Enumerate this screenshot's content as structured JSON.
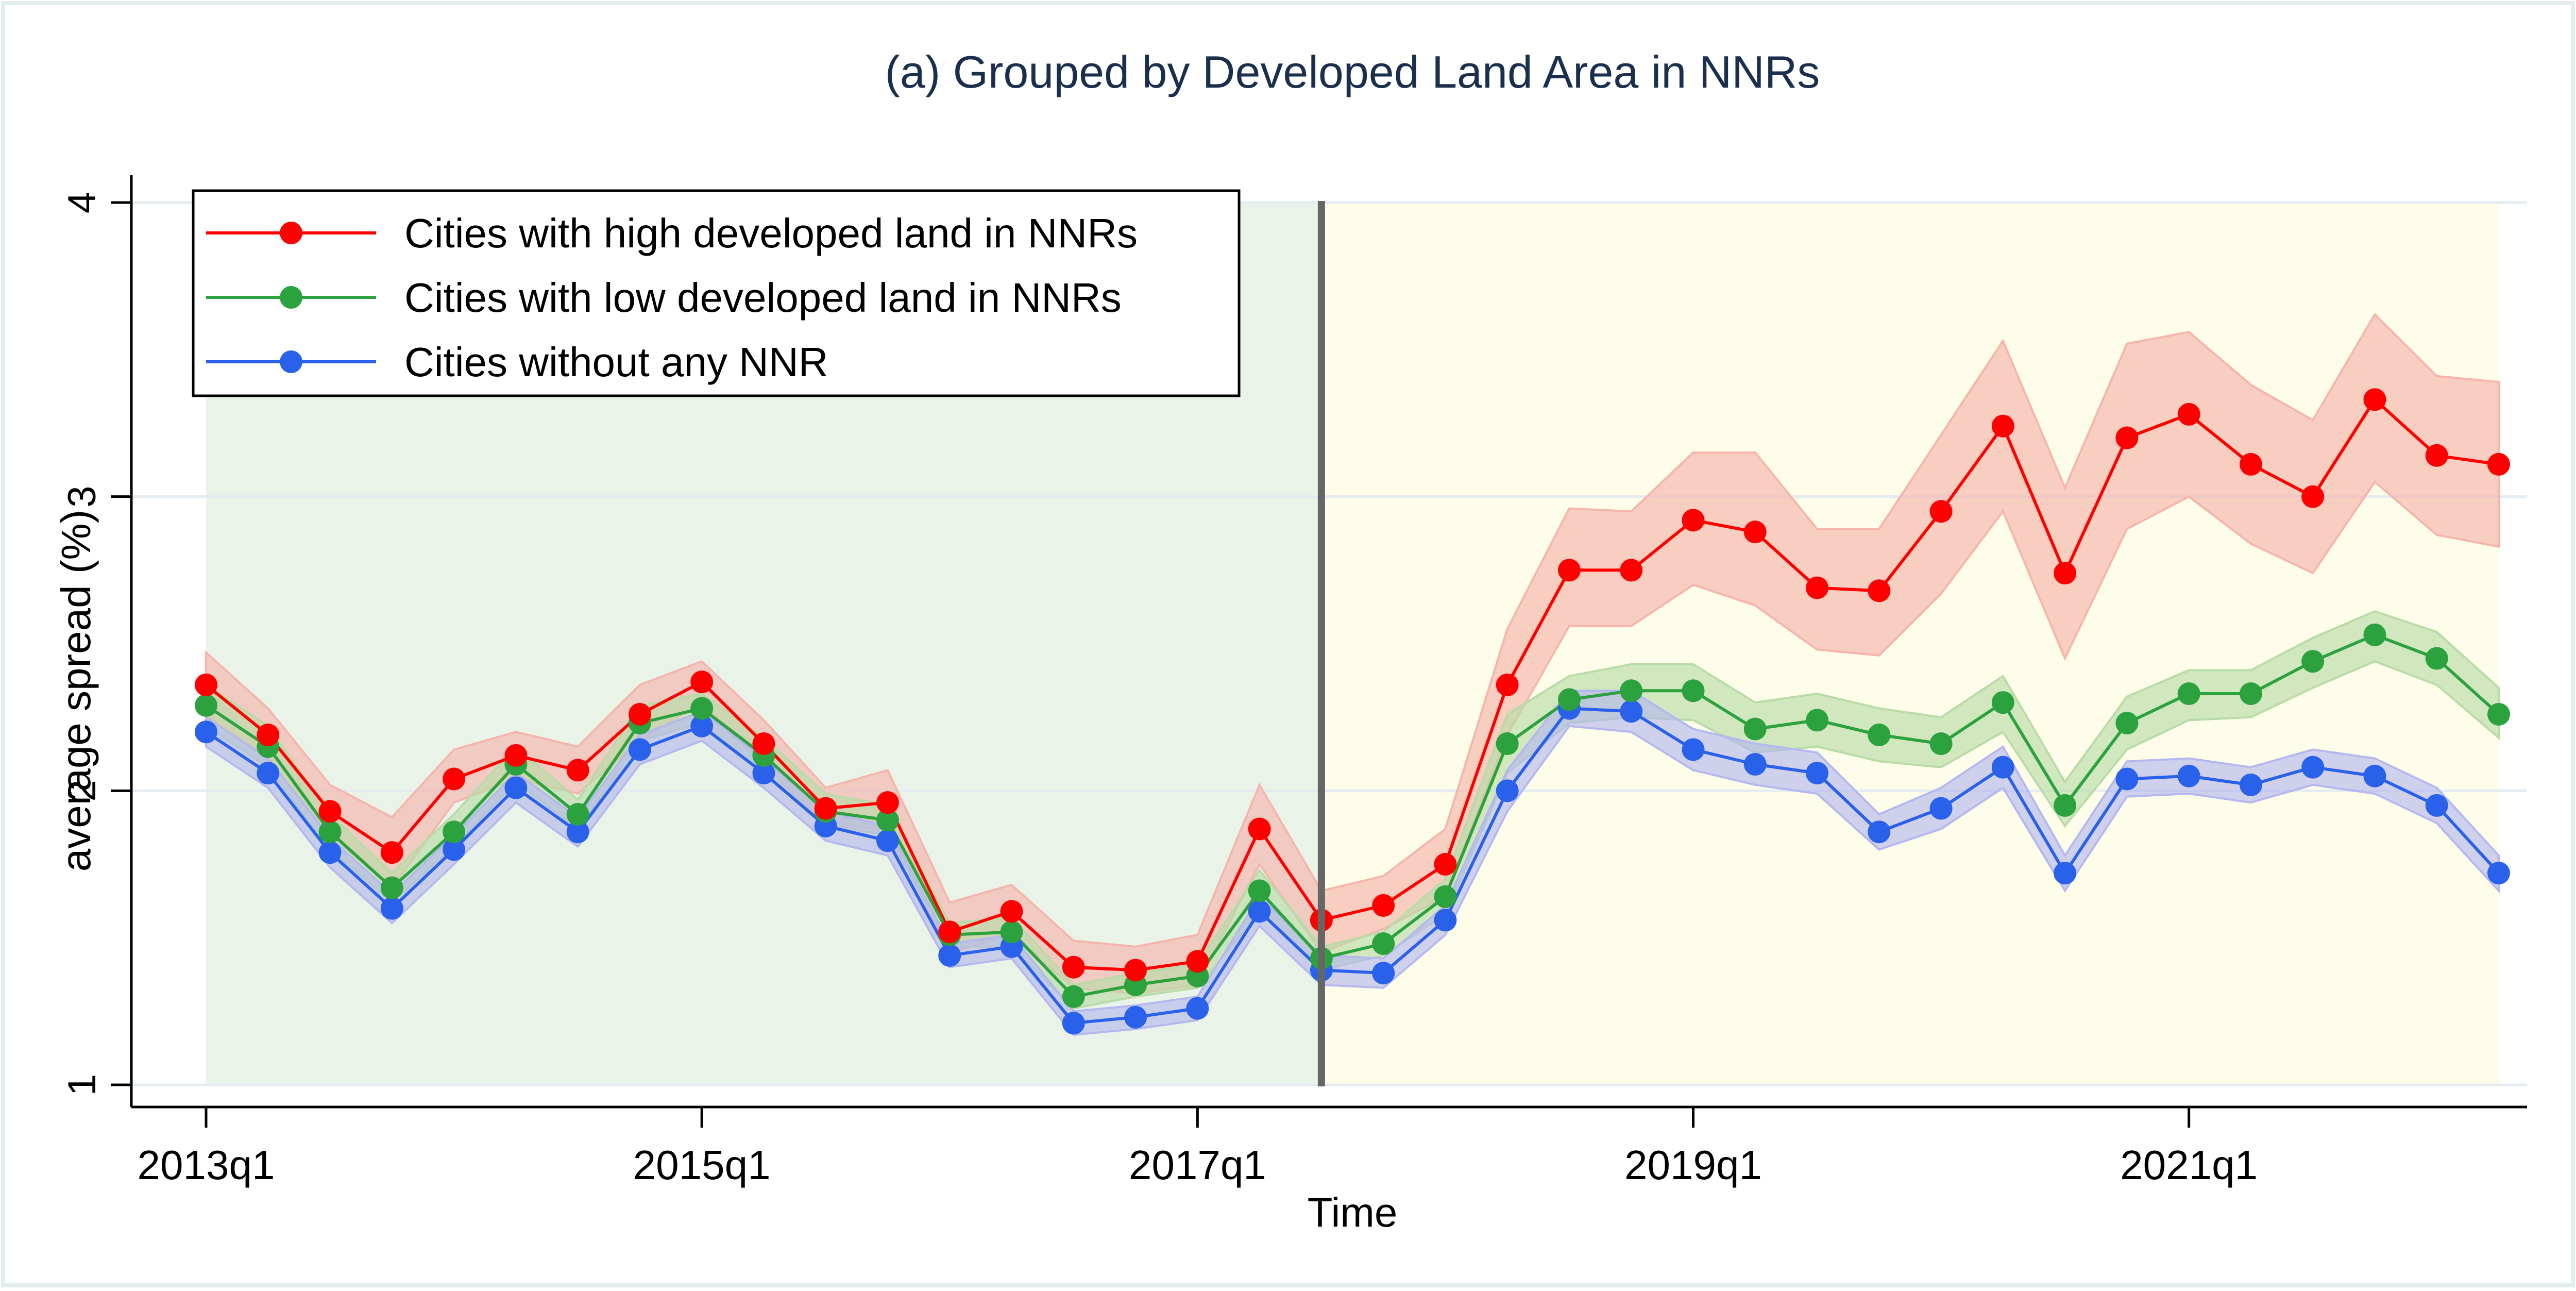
{
  "chart_data": {
    "type": "line",
    "title": "(a) Grouped by Developed Land Area in NNRs",
    "xlabel": "Time",
    "ylabel": "average spread (%)",
    "ylim": [
      1,
      4
    ],
    "yticks": [
      1,
      2,
      3,
      4
    ],
    "x": [
      "2013q1",
      "2013q2",
      "2013q3",
      "2013q4",
      "2014q1",
      "2014q2",
      "2014q3",
      "2014q4",
      "2015q1",
      "2015q2",
      "2015q3",
      "2015q4",
      "2016q1",
      "2016q2",
      "2016q3",
      "2016q4",
      "2017q1",
      "2017q2",
      "2017q3",
      "2017q4",
      "2018q1",
      "2018q2",
      "2018q3",
      "2018q4",
      "2019q1",
      "2019q2",
      "2019q3",
      "2019q4",
      "2020q1",
      "2020q2",
      "2020q3",
      "2020q4",
      "2021q1",
      "2021q2",
      "2021q3",
      "2021q4",
      "2022q1",
      "2022q2"
    ],
    "xticks": [
      "2013q1",
      "2015q1",
      "2017q1",
      "2019q1",
      "2021q1"
    ],
    "event_line": "2017q3",
    "shaded_regions": [
      {
        "from": "2013q1",
        "to": "2017q3",
        "color": "#eaf3e8"
      },
      {
        "from": "2017q3",
        "to": "2022q2",
        "color": "#fefde9"
      }
    ],
    "legend_position": "top-left",
    "grid": true,
    "series": [
      {
        "name": "Cities with high developed land in NNRs",
        "color": "#ff0000",
        "band_color": "#f5b5ac",
        "values": [
          2.36,
          2.19,
          1.93,
          1.79,
          2.04,
          2.12,
          2.07,
          2.26,
          2.37,
          2.16,
          1.94,
          1.96,
          1.52,
          1.59,
          1.4,
          1.39,
          1.42,
          1.87,
          1.56,
          1.61,
          1.75,
          2.36,
          2.75,
          2.75,
          2.92,
          2.88,
          2.69,
          2.68,
          2.95,
          3.24,
          2.74,
          3.2,
          3.28,
          3.11,
          3.0,
          3.33,
          3.14,
          3.11
        ],
        "lower": [
          2.26,
          2.11,
          1.85,
          1.67,
          1.96,
          2.04,
          1.99,
          2.17,
          2.3,
          2.09,
          1.88,
          1.87,
          1.45,
          1.51,
          1.33,
          1.31,
          1.34,
          1.75,
          1.45,
          1.53,
          1.64,
          2.19,
          2.56,
          2.56,
          2.7,
          2.63,
          2.48,
          2.46,
          2.67,
          2.95,
          2.45,
          2.89,
          3.0,
          2.84,
          2.74,
          3.05,
          2.87,
          2.83
        ],
        "upper": [
          2.47,
          2.28,
          2.02,
          1.91,
          2.14,
          2.2,
          2.15,
          2.36,
          2.44,
          2.24,
          2.01,
          2.07,
          1.62,
          1.68,
          1.49,
          1.47,
          1.51,
          2.02,
          1.66,
          1.71,
          1.87,
          2.55,
          2.96,
          2.95,
          3.15,
          3.15,
          2.89,
          2.89,
          3.21,
          3.53,
          3.03,
          3.52,
          3.56,
          3.38,
          3.26,
          3.62,
          3.41,
          3.39
        ]
      },
      {
        "name": "Cities with low developed land in NNRs",
        "color": "#2ca23f",
        "band_color": "#b8dba8",
        "values": [
          2.29,
          2.15,
          1.86,
          1.67,
          1.86,
          2.09,
          1.92,
          2.23,
          2.28,
          2.12,
          1.93,
          1.9,
          1.51,
          1.52,
          1.3,
          1.34,
          1.37,
          1.66,
          1.43,
          1.48,
          1.64,
          2.16,
          2.31,
          2.34,
          2.34,
          2.21,
          2.24,
          2.19,
          2.16,
          2.3,
          1.95,
          2.23,
          2.33,
          2.33,
          2.44,
          2.53,
          2.45,
          2.26
        ],
        "lower": [
          2.22,
          2.08,
          1.8,
          1.62,
          1.81,
          2.03,
          1.87,
          2.17,
          2.23,
          2.06,
          1.88,
          1.85,
          1.47,
          1.47,
          1.26,
          1.3,
          1.33,
          1.59,
          1.39,
          1.44,
          1.58,
          2.06,
          2.23,
          2.25,
          2.24,
          2.13,
          2.15,
          2.1,
          2.08,
          2.2,
          1.88,
          2.14,
          2.24,
          2.25,
          2.35,
          2.44,
          2.36,
          2.18
        ],
        "upper": [
          2.36,
          2.22,
          1.92,
          1.72,
          1.92,
          2.15,
          1.97,
          2.29,
          2.33,
          2.18,
          1.99,
          1.95,
          1.55,
          1.57,
          1.34,
          1.38,
          1.41,
          1.73,
          1.47,
          1.52,
          1.7,
          2.26,
          2.39,
          2.43,
          2.43,
          2.3,
          2.33,
          2.28,
          2.25,
          2.39,
          2.03,
          2.32,
          2.41,
          2.41,
          2.52,
          2.61,
          2.54,
          2.35
        ]
      },
      {
        "name": "Cities without any NNR",
        "color": "#2a61ea",
        "band_color": "#b5b8ee",
        "values": [
          2.2,
          2.06,
          1.79,
          1.6,
          1.8,
          2.01,
          1.86,
          2.14,
          2.22,
          2.06,
          1.88,
          1.83,
          1.44,
          1.47,
          1.21,
          1.23,
          1.26,
          1.59,
          1.39,
          1.38,
          1.56,
          2.0,
          2.28,
          2.27,
          2.14,
          2.09,
          2.06,
          1.86,
          1.94,
          2.08,
          1.72,
          2.04,
          2.05,
          2.02,
          2.08,
          2.05,
          1.95,
          1.72
        ],
        "lower": [
          2.15,
          2.01,
          1.74,
          1.55,
          1.75,
          1.96,
          1.81,
          2.09,
          2.17,
          2.01,
          1.83,
          1.78,
          1.4,
          1.43,
          1.17,
          1.19,
          1.22,
          1.54,
          1.34,
          1.33,
          1.51,
          1.93,
          2.22,
          2.2,
          2.07,
          2.02,
          1.99,
          1.8,
          1.87,
          2.01,
          1.66,
          1.98,
          1.99,
          1.96,
          2.02,
          1.99,
          1.89,
          1.66
        ],
        "upper": [
          2.25,
          2.11,
          1.84,
          1.65,
          1.85,
          2.06,
          1.91,
          2.19,
          2.27,
          2.11,
          1.93,
          1.88,
          1.48,
          1.51,
          1.25,
          1.27,
          1.3,
          1.64,
          1.44,
          1.43,
          1.61,
          2.07,
          2.34,
          2.34,
          2.21,
          2.16,
          2.13,
          1.92,
          2.01,
          2.15,
          1.78,
          2.1,
          2.11,
          2.08,
          2.14,
          2.11,
          2.01,
          1.78
        ]
      }
    ]
  }
}
